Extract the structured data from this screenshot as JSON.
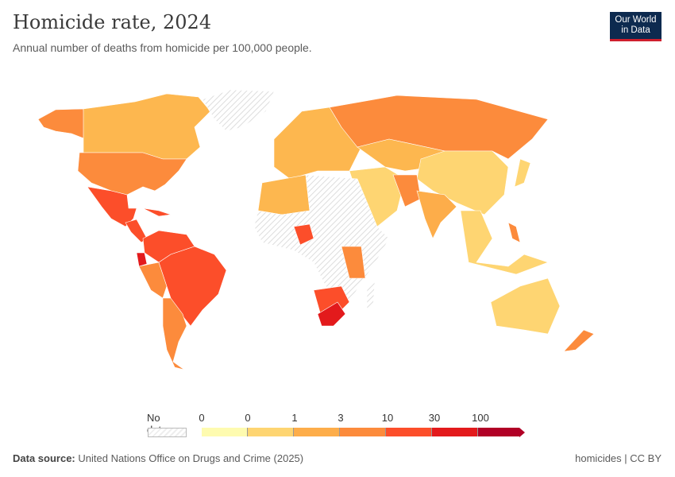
{
  "header": {
    "title": "Homicide rate, 2024",
    "subtitle": "Annual number of deaths from homicide per 100,000 people."
  },
  "logo": {
    "line1": "Our World",
    "line2": "in Data",
    "bg_color": "#0d2a4f",
    "accent_color": "#cf1f2d"
  },
  "legend": {
    "no_data_label": "No data",
    "ticks": [
      "0",
      "0",
      "1",
      "3",
      "10",
      "30",
      "100"
    ],
    "colors": [
      "#fefbb0",
      "#fed572",
      "#fdad4a",
      "#fc8b3c",
      "#fc4e2a",
      "#e31a1c",
      "#b10026"
    ]
  },
  "footer": {
    "source_label": "Data source:",
    "source_text": "United Nations Office on Drugs and Crime (2025)",
    "right_text": "homicides | CC BY"
  }
}
